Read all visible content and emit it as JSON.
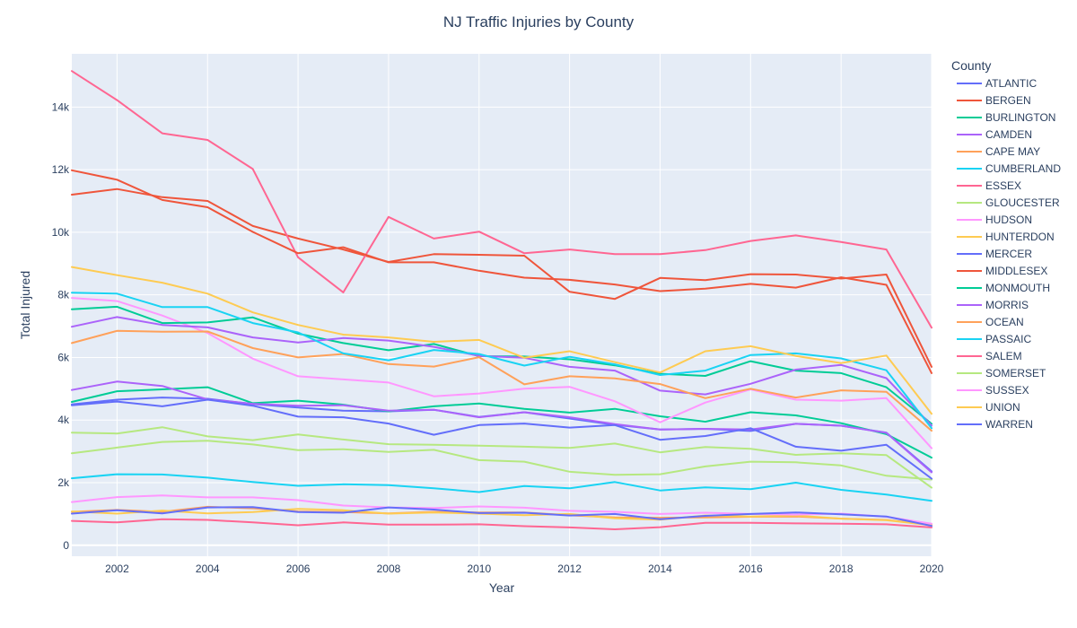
{
  "chart_data": {
    "type": "line",
    "title": "NJ Traffic Injuries by County",
    "xlabel": "Year",
    "ylabel": "Total Injured",
    "xlim": [
      2001,
      2020
    ],
    "ylim": [
      -350,
      15700
    ],
    "x_ticks": [
      2002,
      2004,
      2006,
      2008,
      2010,
      2012,
      2014,
      2016,
      2018,
      2020
    ],
    "y_ticks": [
      0,
      2000,
      4000,
      6000,
      8000,
      10000,
      12000,
      14000
    ],
    "y_tick_labels": [
      "0",
      "2k",
      "4k",
      "6k",
      "8k",
      "10k",
      "12k",
      "14k"
    ],
    "grid": true,
    "legend": {
      "title": "County",
      "placement": "right"
    },
    "x": [
      2001,
      2002,
      2003,
      2004,
      2005,
      2006,
      2007,
      2008,
      2009,
      2010,
      2011,
      2012,
      2013,
      2014,
      2015,
      2016,
      2017,
      2018,
      2019,
      2020
    ],
    "series": [
      {
        "name": "ATLANTIC",
        "color": "#636efa",
        "values": [
          4500,
          4650,
          4720,
          4680,
          4510,
          4400,
          4300,
          4280,
          4330,
          4100,
          4250,
          4050,
          3850,
          3700,
          3720,
          3650,
          3880,
          3820,
          3600,
          2360
        ]
      },
      {
        "name": "BERGEN",
        "color": "#ef553b",
        "values": [
          11200,
          11380,
          11120,
          11000,
          10200,
          9800,
          9450,
          9050,
          9300,
          9280,
          9250,
          8100,
          7870,
          8540,
          8470,
          8660,
          8650,
          8520,
          8650,
          5700
        ]
      },
      {
        "name": "BURLINGTON",
        "color": "#00cc96",
        "values": [
          4580,
          4920,
          4980,
          5050,
          4540,
          4620,
          4490,
          4280,
          4440,
          4530,
          4360,
          4240,
          4360,
          4120,
          3950,
          4250,
          4150,
          3900,
          3550,
          2800
        ]
      },
      {
        "name": "CAMDEN",
        "color": "#ab63fa",
        "values": [
          4960,
          5230,
          5090,
          4660,
          4520,
          4460,
          4470,
          4300,
          4330,
          4090,
          4250,
          4090,
          3870,
          3700,
          3720,
          3700,
          3880,
          3820,
          3590,
          2330
        ]
      },
      {
        "name": "CAPE MAY",
        "color": "#ffa15a",
        "values": [
          1070,
          1130,
          1070,
          1230,
          1180,
          1080,
          1060,
          1020,
          1070,
          1050,
          1050,
          960,
          890,
          880,
          890,
          910,
          920,
          850,
          810,
          650
        ]
      },
      {
        "name": "CUMBERLAND",
        "color": "#19d3f3",
        "values": [
          2140,
          2270,
          2260,
          2160,
          2020,
          1900,
          1950,
          1920,
          1820,
          1700,
          1890,
          1820,
          2020,
          1750,
          1850,
          1790,
          2000,
          1770,
          1620,
          1420
        ]
      },
      {
        "name": "ESSEX",
        "color": "#ff6692",
        "values": [
          15150,
          14220,
          13160,
          12950,
          12020,
          9200,
          8080,
          10490,
          9800,
          10020,
          9330,
          9450,
          9300,
          9300,
          9430,
          9720,
          9900,
          9690,
          9450,
          6950
        ]
      },
      {
        "name": "GLOUCESTER",
        "color": "#b6e880",
        "values": [
          2940,
          3120,
          3300,
          3340,
          3220,
          3040,
          3070,
          2980,
          3050,
          2720,
          2670,
          2350,
          2250,
          2270,
          2520,
          2670,
          2650,
          2550,
          2220,
          2100
        ]
      },
      {
        "name": "HUDSON",
        "color": "#ff97ff",
        "values": [
          7900,
          7800,
          7340,
          6780,
          5960,
          5400,
          5300,
          5200,
          4760,
          4850,
          5000,
          5060,
          4600,
          3930,
          4560,
          4980,
          4650,
          4620,
          4700,
          3100
        ]
      },
      {
        "name": "HUNTERDON",
        "color": "#fecb52",
        "values": [
          1080,
          1010,
          1110,
          1020,
          1060,
          1160,
          1120,
          1010,
          1050,
          1010,
          960,
          1000,
          860,
          820,
          950,
          920,
          950,
          850,
          800,
          640
        ]
      },
      {
        "name": "MERCER",
        "color": "#636efa",
        "values": [
          4470,
          4590,
          4440,
          4650,
          4460,
          4110,
          4090,
          3890,
          3530,
          3840,
          3890,
          3760,
          3840,
          3370,
          3490,
          3740,
          3150,
          3020,
          3210,
          2130
        ]
      },
      {
        "name": "MIDDLESEX",
        "color": "#ef553b",
        "values": [
          11980,
          11680,
          11030,
          10800,
          10010,
          9330,
          9520,
          9040,
          9040,
          8770,
          8550,
          8480,
          8330,
          8120,
          8200,
          8350,
          8230,
          8560,
          8320,
          5500
        ]
      },
      {
        "name": "MONMOUTH",
        "color": "#00cc96",
        "values": [
          7540,
          7620,
          7100,
          7120,
          7280,
          6760,
          6460,
          6230,
          6430,
          6040,
          6030,
          5940,
          5750,
          5480,
          5410,
          5880,
          5580,
          5500,
          5050,
          3880
        ]
      },
      {
        "name": "MORRIS",
        "color": "#ab63fa",
        "values": [
          6980,
          7290,
          7040,
          6960,
          6640,
          6480,
          6620,
          6540,
          6340,
          6050,
          5990,
          5700,
          5580,
          4940,
          4820,
          5160,
          5610,
          5760,
          5340,
          3820
        ]
      },
      {
        "name": "OCEAN",
        "color": "#ffa15a",
        "values": [
          6460,
          6850,
          6820,
          6830,
          6300,
          6000,
          6110,
          5790,
          5710,
          6010,
          5140,
          5400,
          5330,
          5150,
          4700,
          5000,
          4720,
          4950,
          4900,
          3660
        ]
      },
      {
        "name": "PASSAIC",
        "color": "#19d3f3",
        "values": [
          8070,
          8040,
          7610,
          7610,
          7100,
          6800,
          6130,
          5910,
          6240,
          6110,
          5740,
          6020,
          5780,
          5440,
          5580,
          6080,
          6130,
          5970,
          5590,
          3740
        ]
      },
      {
        "name": "SALEM",
        "color": "#ff6692",
        "values": [
          780,
          730,
          830,
          810,
          730,
          640,
          730,
          660,
          660,
          670,
          610,
          570,
          510,
          580,
          720,
          720,
          700,
          690,
          670,
          570
        ]
      },
      {
        "name": "SOMERSET",
        "color": "#b6e880",
        "values": [
          3600,
          3570,
          3770,
          3480,
          3360,
          3540,
          3380,
          3230,
          3210,
          3180,
          3150,
          3110,
          3250,
          2970,
          3140,
          3080,
          2890,
          2940,
          2880,
          1840
        ]
      },
      {
        "name": "SUSSEX",
        "color": "#ff97ff",
        "values": [
          1380,
          1540,
          1590,
          1530,
          1530,
          1440,
          1270,
          1210,
          1190,
          1240,
          1200,
          1100,
          1070,
          1000,
          1040,
          1000,
          980,
          1010,
          910,
          690
        ]
      },
      {
        "name": "UNION",
        "color": "#fecb52",
        "values": [
          8890,
          8630,
          8390,
          8040,
          7440,
          7040,
          6730,
          6640,
          6500,
          6560,
          5990,
          6200,
          5850,
          5520,
          6200,
          6360,
          6050,
          5820,
          6060,
          4200
        ]
      },
      {
        "name": "WARREN",
        "color": "#636efa",
        "values": [
          1010,
          1120,
          1020,
          1210,
          1220,
          1060,
          1040,
          1210,
          1140,
          1030,
          1040,
          950,
          1000,
          830,
          940,
          1000,
          1050,
          990,
          920,
          620
        ]
      }
    ]
  }
}
